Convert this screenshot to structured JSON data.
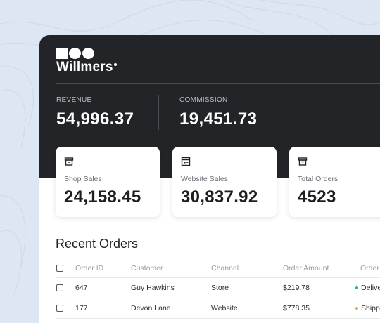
{
  "brand": {
    "name": "Willmers"
  },
  "stats": [
    {
      "label": "REVENUE",
      "value": "54,996.37"
    },
    {
      "label": "COMMISSION",
      "value": "19,451.73"
    }
  ],
  "cards": [
    {
      "label": "Shop Sales",
      "value": "24,158.45",
      "icon": "shop-icon"
    },
    {
      "label": "Website Sales",
      "value": "30,837.92",
      "icon": "website-icon"
    },
    {
      "label": "Total Orders",
      "value": "4523",
      "icon": "box-icon"
    }
  ],
  "orders": {
    "title": "Recent Orders",
    "columns": [
      "Order ID",
      "Customer",
      "Channel",
      "Order Amount",
      "Order"
    ],
    "rows": [
      {
        "id": "647",
        "customer": "Guy Hawkins",
        "channel": "Store",
        "amount": "$219.78",
        "status": "Delive",
        "status_color": "#22b573"
      },
      {
        "id": "177",
        "customer": "Devon Lane",
        "channel": "Website",
        "amount": "$778.35",
        "status": "Shipp",
        "status_color": "#f5a13a"
      }
    ]
  },
  "colors": {
    "header_bg": "#232427",
    "page_bg": "#dde7f4",
    "card_bg": "#ffffff"
  }
}
